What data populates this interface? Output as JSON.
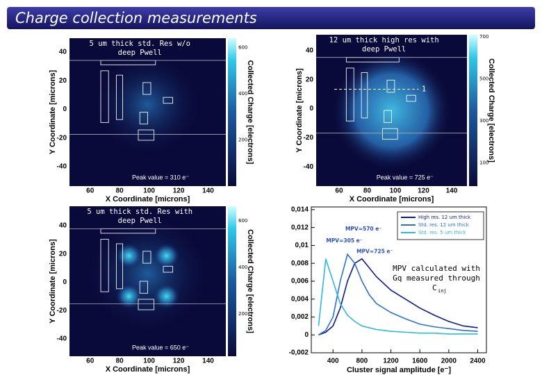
{
  "title": "Charge collection measurements",
  "maps": [
    {
      "caption": [
        "5 um thick std. Res w/o",
        "deep Pwell"
      ],
      "peak": "Peak value = 310 e⁻",
      "xlabel": "X Coordinate [microns]",
      "ylabel": "Y Coordinate [microns]",
      "xlim": [
        46,
        152
      ],
      "ylim": [
        -53.6,
        49.7
      ],
      "xticks": [
        60,
        80,
        100,
        120,
        140
      ],
      "yticks": [
        40,
        20,
        0,
        -20,
        -40
      ],
      "cbar_label": "Collected Charge [electrons]",
      "clim": [
        0,
        640
      ],
      "cticks": [
        600,
        400,
        200
      ]
    },
    {
      "caption": [
        "12 um thick high res with",
        "deep Pwell"
      ],
      "peak": "Peak value = 725 e⁻",
      "marker": "1",
      "xlabel": "X Coordinate [microns]",
      "ylabel": "Y Coordinate [microns]",
      "xlim": [
        43.7,
        150.9
      ],
      "ylim": [
        -53.3,
        51
      ],
      "xticks": [
        60,
        80,
        100,
        120,
        140
      ],
      "yticks": [
        40,
        20,
        0,
        -20,
        -40
      ],
      "cbar_label": "Collected Charge [electrons]",
      "clim": [
        -10,
        710
      ],
      "cticks": [
        700,
        500,
        300,
        100
      ]
    },
    {
      "caption": [
        "5 um thick std. Res with",
        "deep Pwell"
      ],
      "peak": "Peak value = 650 e⁻",
      "xlabel": "X Coordinate [microns]",
      "ylabel": "Y Coordinate [microns]",
      "xlim": [
        46,
        152
      ],
      "ylim": [
        -52.3,
        53.7
      ],
      "xticks": [
        60,
        80,
        100,
        120,
        140
      ],
      "yticks": [
        40,
        20,
        0,
        -20,
        -40
      ],
      "cbar_label": "Collected Charge [electrons]",
      "clim": [
        17,
        663
      ],
      "cticks": [
        600,
        400,
        200
      ]
    }
  ],
  "chart_data": {
    "type": "line",
    "xlabel": "Cluster signal amplitude [e⁻]",
    "x": [
      200,
      300,
      400,
      500,
      600,
      700,
      800,
      900,
      1000,
      1200,
      1400,
      1600,
      1800,
      2000,
      2200,
      2400
    ],
    "series": [
      {
        "name": "High res. 12 um thick",
        "color": "#0d1a8c",
        "values": [
          0,
          0.0003,
          0.001,
          0.003,
          0.006,
          0.008,
          0.0085,
          0.0075,
          0.0065,
          0.005,
          0.004,
          0.003,
          0.0022,
          0.0015,
          0.001,
          0.0008
        ]
      },
      {
        "name": "Std. res. 12 um thick",
        "color": "#2a6fd6",
        "values": [
          0,
          0.0005,
          0.002,
          0.006,
          0.009,
          0.008,
          0.006,
          0.0045,
          0.0035,
          0.0025,
          0.0018,
          0.0012,
          0.0009,
          0.0007,
          0.0005,
          0.0004
        ]
      },
      {
        "name": "Std. res. 5 um thick",
        "color": "#2bb8e0",
        "values": [
          0.001,
          0.0085,
          0.006,
          0.0035,
          0.0022,
          0.0015,
          0.001,
          0.0008,
          0.0006,
          0.0004,
          0.0003,
          0.0002,
          0.0002,
          0.0001,
          0.0001,
          0.0001
        ]
      }
    ],
    "xlim": [
      100,
      2520
    ],
    "ylim": [
      -0.002,
      0.0143
    ],
    "xticks": [
      400,
      800,
      1200,
      1600,
      2000,
      2400
    ],
    "yticks": [
      {
        "value": 0.014,
        "label": "0,014"
      },
      {
        "value": 0.012,
        "label": "0,012"
      },
      {
        "value": 0.01,
        "label": "0,01"
      },
      {
        "value": 0.008,
        "label": "0,008"
      },
      {
        "value": 0.006,
        "label": "0,006"
      },
      {
        "value": 0.004,
        "label": "0,004"
      },
      {
        "value": 0.002,
        "label": "0,002"
      },
      0,
      {
        "value": -0.002,
        "label": "-0,002"
      }
    ],
    "annotations": [
      {
        "text": "MPV=570 e⁻",
        "x": 570,
        "y": 0.0118
      },
      {
        "text": "MPV=305 e⁻",
        "x": 305,
        "y": 0.0105
      },
      {
        "text": "MPV=725 e⁻",
        "x": 725,
        "y": 0.0093
      }
    ],
    "note": [
      "MPV calculated with",
      "Gq measured through",
      "C",
      "inj"
    ]
  }
}
